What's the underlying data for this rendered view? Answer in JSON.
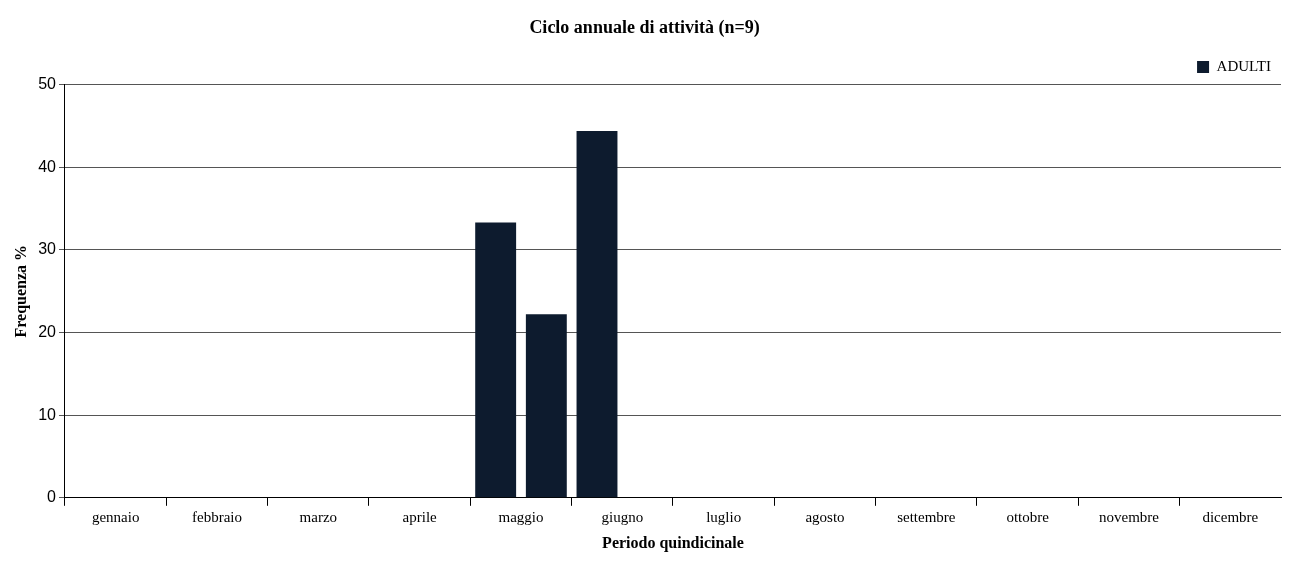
{
  "chart_data": {
    "type": "bar",
    "title": "Ciclo annuale di attività (n=9)",
    "xlabel": "Periodo quindicinale",
    "ylabel": "Frequenza %",
    "categories": [
      "gennaio",
      null,
      "febbraio",
      null,
      "marzo",
      null,
      "aprile",
      null,
      "maggio",
      null,
      "giugno",
      null,
      "luglio",
      null,
      "agosto",
      null,
      "settembre",
      null,
      "ottobre",
      null,
      "novembre",
      null,
      "dicembre",
      null
    ],
    "series": [
      {
        "name": "ADULTI",
        "color": "#0d1b2e",
        "values": [
          0,
          0,
          0,
          0,
          0,
          0,
          0,
          0,
          33.3,
          22.2,
          44.4,
          0,
          0,
          0,
          0,
          0,
          0,
          0,
          0,
          0,
          0,
          0,
          0,
          0
        ]
      }
    ],
    "ylim": [
      0,
      50
    ],
    "yticks": [
      0,
      10,
      20,
      30,
      40,
      50
    ],
    "grid": "y",
    "legend": "top right"
  }
}
